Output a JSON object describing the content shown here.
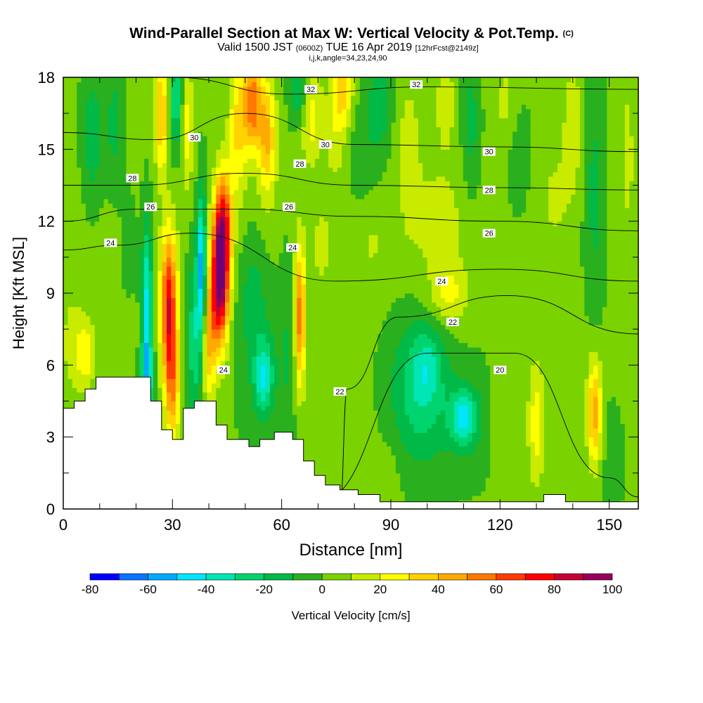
{
  "title": {
    "main": "Wind-Parallel Section at Max W: Vertical Velocity & Pot.Temp.",
    "copyright": "(C)",
    "valid_prefix": "Valid 1500 JST",
    "valid_utc": "(0600Z)",
    "valid_date": "TUE 16 Apr 2019",
    "forecast": "[12hrFcst@2149z]",
    "indices": "i,j,k,angle=34,23,24,90"
  },
  "chart_data": {
    "type": "heatmap",
    "xlabel": "Distance [nm]",
    "ylabel": "Height [Kft MSL]",
    "xlim": [
      0,
      158
    ],
    "ylim": [
      0,
      18
    ],
    "x_ticks": [
      0,
      30,
      60,
      90,
      120,
      150
    ],
    "y_ticks": [
      0,
      3,
      6,
      9,
      12,
      15,
      18
    ],
    "colorbar": {
      "label": "Vertical Velocity [cm/s]",
      "ticks": [
        -80,
        -60,
        -40,
        -20,
        0,
        20,
        40,
        60,
        80,
        100
      ],
      "levels": [
        -80,
        -70,
        -60,
        -50,
        -40,
        -30,
        -20,
        -10,
        0,
        10,
        20,
        30,
        40,
        50,
        60,
        70,
        80,
        90,
        100
      ],
      "colors": [
        "#0000ff",
        "#0a73ff",
        "#00aaff",
        "#00e6ff",
        "#00e6b4",
        "#00d46e",
        "#00b946",
        "#2ab01e",
        "#7ad200",
        "#c8eb00",
        "#ffff00",
        "#ffd200",
        "#ffaa00",
        "#ff7800",
        "#ff3c00",
        "#ff0000",
        "#c80032",
        "#96005a",
        "#6e0078"
      ]
    },
    "vertical_velocity_features": [
      {
        "x": 29,
        "y": 8.5,
        "value": 70
      },
      {
        "x": 43,
        "y": 9.5,
        "value": 95
      },
      {
        "x": 38,
        "y": 10,
        "value": -40
      },
      {
        "x": 23,
        "y": 9,
        "value": -40
      },
      {
        "x": 65,
        "y": 8,
        "value": 40
      },
      {
        "x": 55,
        "y": 6,
        "value": -30
      },
      {
        "x": 110,
        "y": 4,
        "value": -40
      },
      {
        "x": 146,
        "y": 4,
        "value": 40
      },
      {
        "x": 130,
        "y": 3.5,
        "value": 20
      },
      {
        "x": 52,
        "y": 17,
        "value": 40
      }
    ],
    "theta_contours": [
      {
        "label": "20",
        "points": [
          [
            70,
            0.3
          ],
          [
            100,
            6.5
          ],
          [
            124,
            6.5
          ],
          [
            150,
            1.3
          ],
          [
            158,
            0.5
          ]
        ]
      },
      {
        "label": "22",
        "points": [
          [
            76,
            0
          ],
          [
            78,
            5
          ],
          [
            92,
            8
          ],
          [
            122,
            8.9
          ],
          [
            158,
            7.3
          ]
        ]
      },
      {
        "label": "24",
        "points": [
          [
            0,
            10.8
          ],
          [
            15,
            11
          ],
          [
            35,
            11.5
          ],
          [
            75,
            9.5
          ],
          [
            120,
            10
          ],
          [
            158,
            9.5
          ]
        ]
      },
      {
        "label": "26",
        "points": [
          [
            0,
            12
          ],
          [
            20,
            12.5
          ],
          [
            50,
            12.5
          ],
          [
            80,
            12.2
          ],
          [
            120,
            12
          ],
          [
            158,
            11.6
          ]
        ]
      },
      {
        "label": "28",
        "points": [
          [
            0,
            13.5
          ],
          [
            20,
            13.5
          ],
          [
            50,
            14
          ],
          [
            80,
            13.5
          ],
          [
            120,
            13.4
          ],
          [
            158,
            13.3
          ]
        ]
      },
      {
        "label": "30",
        "points": [
          [
            0,
            15.7
          ],
          [
            25,
            15.4
          ],
          [
            50,
            16.5
          ],
          [
            80,
            15.2
          ],
          [
            120,
            15.1
          ],
          [
            158,
            14.9
          ]
        ]
      },
      {
        "label": "32",
        "points": [
          [
            0,
            18
          ],
          [
            30,
            18
          ],
          [
            62,
            17.3
          ],
          [
            100,
            17.6
          ],
          [
            158,
            17.5
          ]
        ]
      }
    ],
    "contour_labels": [
      {
        "text": "32",
        "x": 68,
        "y": 17.5
      },
      {
        "text": "32",
        "x": 97,
        "y": 17.7
      },
      {
        "text": "30",
        "x": 36,
        "y": 15.5
      },
      {
        "text": "30",
        "x": 72,
        "y": 15.2
      },
      {
        "text": "30",
        "x": 117,
        "y": 14.9
      },
      {
        "text": "28",
        "x": 19,
        "y": 13.8
      },
      {
        "text": "28",
        "x": 65,
        "y": 14.4
      },
      {
        "text": "28",
        "x": 117,
        "y": 13.3
      },
      {
        "text": "26",
        "x": 24,
        "y": 12.6
      },
      {
        "text": "26",
        "x": 62,
        "y": 12.6
      },
      {
        "text": "26",
        "x": 117,
        "y": 11.5
      },
      {
        "text": "24",
        "x": 13,
        "y": 11.1
      },
      {
        "text": "24",
        "x": 63,
        "y": 10.9
      },
      {
        "text": "24",
        "x": 104,
        "y": 9.5
      },
      {
        "text": "24",
        "x": 44,
        "y": 5.8
      },
      {
        "text": "22",
        "x": 107,
        "y": 7.8
      },
      {
        "text": "22",
        "x": 76,
        "y": 4.9
      },
      {
        "text": "20",
        "x": 120,
        "y": 5.8
      }
    ],
    "terrain": [
      [
        0,
        4.2
      ],
      [
        3,
        4.5
      ],
      [
        6,
        5.0
      ],
      [
        9,
        5.5
      ],
      [
        24,
        4.5
      ],
      [
        27,
        3.3
      ],
      [
        30,
        2.9
      ],
      [
        33,
        4.2
      ],
      [
        36,
        4.5
      ],
      [
        42,
        3.5
      ],
      [
        45,
        2.9
      ],
      [
        51,
        2.6
      ],
      [
        54,
        2.9
      ],
      [
        58,
        3.2
      ],
      [
        63,
        2.9
      ],
      [
        66,
        2.0
      ],
      [
        69,
        1.4
      ],
      [
        72,
        1.0
      ],
      [
        76,
        0.8
      ],
      [
        81,
        0.6
      ],
      [
        87,
        0.3
      ],
      [
        132,
        0.6
      ],
      [
        138,
        0.3
      ],
      [
        158,
        0.3
      ]
    ]
  }
}
